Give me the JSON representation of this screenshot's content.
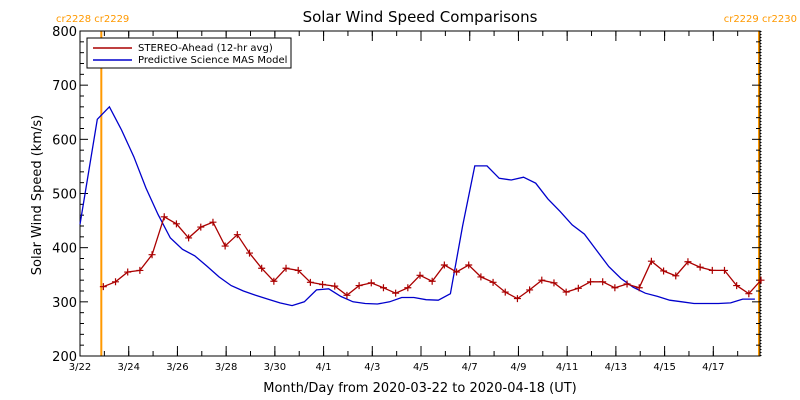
{
  "chart_data": {
    "type": "line",
    "title": "Solar Wind Speed Comparisons",
    "xlabel": "Month/Day from 2020-03-22 to 2020-04-18 (UT)",
    "ylabel": "Solar Wind Speed (km/s)",
    "xlim": [
      "2020-03-22T00:00",
      "2020-04-18T22:00"
    ],
    "ylim": [
      200,
      800
    ],
    "ytick_step": 100,
    "yticks": [
      "200",
      "300",
      "400",
      "500",
      "600",
      "700",
      "800"
    ],
    "xticks": [
      {
        "date": "2020-03-22",
        "label": "3/22"
      },
      {
        "date": "2020-03-24",
        "label": "3/24"
      },
      {
        "date": "2020-03-26",
        "label": "3/26"
      },
      {
        "date": "2020-03-28",
        "label": "3/28"
      },
      {
        "date": "2020-03-30",
        "label": "3/30"
      },
      {
        "date": "2020-04-01",
        "label": "4/1"
      },
      {
        "date": "2020-04-03",
        "label": "4/3"
      },
      {
        "date": "2020-04-05",
        "label": "4/5"
      },
      {
        "date": "2020-04-07",
        "label": "4/7"
      },
      {
        "date": "2020-04-09",
        "label": "4/9"
      },
      {
        "date": "2020-04-11",
        "label": "4/11"
      },
      {
        "date": "2020-04-13",
        "label": "4/13"
      },
      {
        "date": "2020-04-15",
        "label": "4/15"
      },
      {
        "date": "2020-04-17",
        "label": "4/17"
      }
    ],
    "legend_position": "top-left",
    "carrington_markers": [
      {
        "date": "2020-03-22T21:00",
        "label": "cr2228 cr2229",
        "side": "left",
        "color": "#ff9900"
      },
      {
        "date": "2020-04-18T21:00",
        "label": "cr2229 cr2230",
        "side": "right",
        "color": "#ff9900"
      }
    ],
    "series": [
      {
        "name": "STEREO-Ahead (12-hr avg)",
        "color": "#aa0000",
        "marker": "plus",
        "points": [
          [
            "2020-03-22T23:00",
            328
          ],
          [
            "2020-03-23T11:00",
            337
          ],
          [
            "2020-03-23T23:00",
            355
          ],
          [
            "2020-03-24T11:00",
            358
          ],
          [
            "2020-03-24T23:00",
            387
          ],
          [
            "2020-03-25T11:00",
            457
          ],
          [
            "2020-03-25T23:00",
            444
          ],
          [
            "2020-03-26T11:00",
            418
          ],
          [
            "2020-03-26T23:00",
            438
          ],
          [
            "2020-03-27T11:00",
            447
          ],
          [
            "2020-03-27T23:00",
            403
          ],
          [
            "2020-03-28T11:00",
            424
          ],
          [
            "2020-03-28T23:00",
            390
          ],
          [
            "2020-03-29T11:00",
            362
          ],
          [
            "2020-03-29T23:00",
            338
          ],
          [
            "2020-03-30T11:00",
            362
          ],
          [
            "2020-03-30T23:00",
            358
          ],
          [
            "2020-03-31T11:00",
            336
          ],
          [
            "2020-03-31T23:00",
            332
          ],
          [
            "2020-04-01T11:00",
            329
          ],
          [
            "2020-04-01T23:00",
            312
          ],
          [
            "2020-04-02T11:00",
            330
          ],
          [
            "2020-04-02T23:00",
            335
          ],
          [
            "2020-04-03T11:00",
            326
          ],
          [
            "2020-04-03T23:00",
            316
          ],
          [
            "2020-04-04T11:00",
            326
          ],
          [
            "2020-04-04T23:00",
            349
          ],
          [
            "2020-04-05T11:00",
            338
          ],
          [
            "2020-04-05T23:00",
            368
          ],
          [
            "2020-04-06T11:00",
            355
          ],
          [
            "2020-04-06T23:00",
            368
          ],
          [
            "2020-04-07T11:00",
            346
          ],
          [
            "2020-04-07T23:00",
            336
          ],
          [
            "2020-04-08T11:00",
            318
          ],
          [
            "2020-04-08T23:00",
            306
          ],
          [
            "2020-04-09T11:00",
            322
          ],
          [
            "2020-04-09T23:00",
            340
          ],
          [
            "2020-04-10T11:00",
            335
          ],
          [
            "2020-04-10T23:00",
            318
          ],
          [
            "2020-04-11T11:00",
            325
          ],
          [
            "2020-04-11T23:00",
            337
          ],
          [
            "2020-04-12T11:00",
            337
          ],
          [
            "2020-04-12T23:00",
            326
          ],
          [
            "2020-04-13T11:00",
            333
          ],
          [
            "2020-04-13T23:00",
            326
          ],
          [
            "2020-04-14T11:00",
            375
          ],
          [
            "2020-04-14T23:00",
            357
          ],
          [
            "2020-04-15T11:00",
            348
          ],
          [
            "2020-04-15T23:00",
            374
          ],
          [
            "2020-04-16T11:00",
            364
          ],
          [
            "2020-04-16T23:00",
            358
          ],
          [
            "2020-04-17T11:00",
            358
          ],
          [
            "2020-04-17T23:00",
            330
          ],
          [
            "2020-04-18T11:00",
            315
          ],
          [
            "2020-04-18T23:00",
            340
          ]
        ]
      },
      {
        "name": "Predictive Science MAS Model",
        "color": "#0000cc",
        "marker": "none",
        "points": [
          [
            "2020-03-22T00:00",
            443
          ],
          [
            "2020-03-22T17:00",
            637
          ],
          [
            "2020-03-23T05:00",
            660
          ],
          [
            "2020-03-23T17:00",
            617
          ],
          [
            "2020-03-24T05:00",
            568
          ],
          [
            "2020-03-24T17:00",
            510
          ],
          [
            "2020-03-25T05:00",
            461
          ],
          [
            "2020-03-25T17:00",
            418
          ],
          [
            "2020-03-26T05:00",
            397
          ],
          [
            "2020-03-26T17:00",
            385
          ],
          [
            "2020-03-27T05:00",
            366
          ],
          [
            "2020-03-27T17:00",
            346
          ],
          [
            "2020-03-28T05:00",
            330
          ],
          [
            "2020-03-28T17:00",
            320
          ],
          [
            "2020-03-29T05:00",
            312
          ],
          [
            "2020-03-29T17:00",
            305
          ],
          [
            "2020-03-30T05:00",
            298
          ],
          [
            "2020-03-30T17:00",
            293
          ],
          [
            "2020-03-31T05:00",
            300
          ],
          [
            "2020-03-31T17:00",
            322
          ],
          [
            "2020-04-01T05:00",
            324
          ],
          [
            "2020-04-01T17:00",
            310
          ],
          [
            "2020-04-02T05:00",
            300
          ],
          [
            "2020-04-02T17:00",
            297
          ],
          [
            "2020-04-03T05:00",
            296
          ],
          [
            "2020-04-03T17:00",
            300
          ],
          [
            "2020-04-04T05:00",
            308
          ],
          [
            "2020-04-04T17:00",
            308
          ],
          [
            "2020-04-05T05:00",
            304
          ],
          [
            "2020-04-05T17:00",
            303
          ],
          [
            "2020-04-06T05:00",
            315
          ],
          [
            "2020-04-06T17:00",
            440
          ],
          [
            "2020-04-07T05:00",
            551
          ],
          [
            "2020-04-07T17:00",
            551
          ],
          [
            "2020-04-08T05:00",
            528
          ],
          [
            "2020-04-08T17:00",
            525
          ],
          [
            "2020-04-09T05:00",
            530
          ],
          [
            "2020-04-09T17:00",
            519
          ],
          [
            "2020-04-10T05:00",
            490
          ],
          [
            "2020-04-10T17:00",
            467
          ],
          [
            "2020-04-11T05:00",
            442
          ],
          [
            "2020-04-11T17:00",
            425
          ],
          [
            "2020-04-12T05:00",
            395
          ],
          [
            "2020-04-12T17:00",
            365
          ],
          [
            "2020-04-13T05:00",
            343
          ],
          [
            "2020-04-13T17:00",
            327
          ],
          [
            "2020-04-14T05:00",
            316
          ],
          [
            "2020-04-14T17:00",
            310
          ],
          [
            "2020-04-15T05:00",
            303
          ],
          [
            "2020-04-15T17:00",
            300
          ],
          [
            "2020-04-16T05:00",
            297
          ],
          [
            "2020-04-16T17:00",
            297
          ],
          [
            "2020-04-17T05:00",
            297
          ],
          [
            "2020-04-17T17:00",
            298
          ],
          [
            "2020-04-18T05:00",
            305
          ],
          [
            "2020-04-18T17:00",
            305
          ]
        ]
      }
    ]
  }
}
